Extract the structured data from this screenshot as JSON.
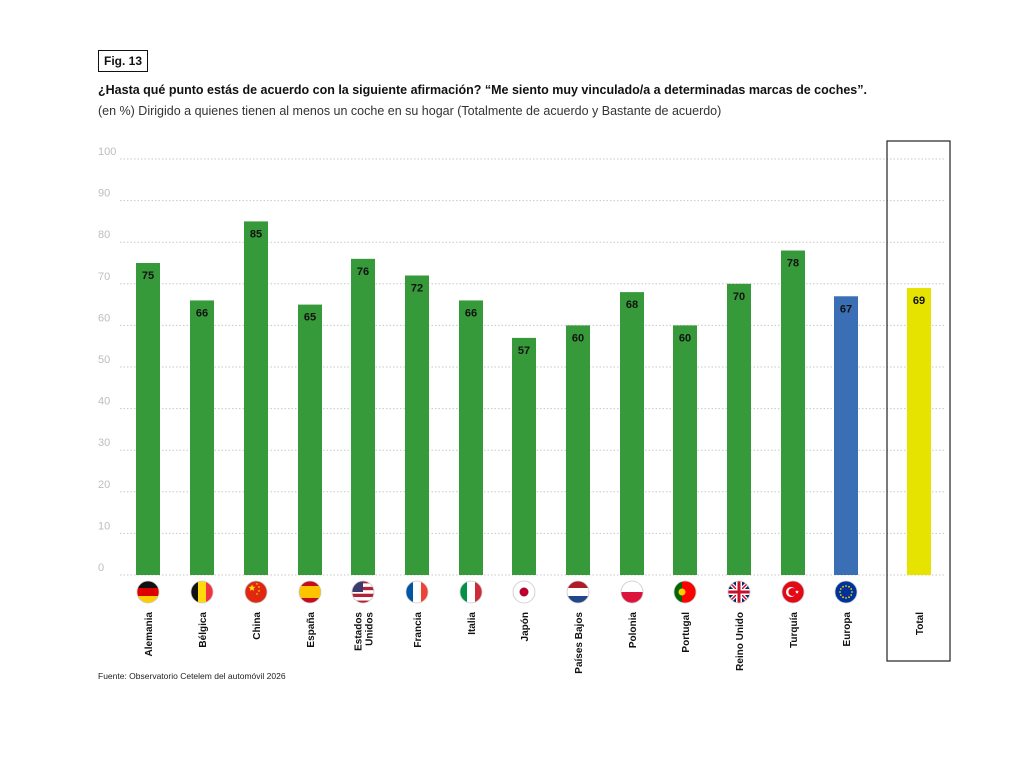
{
  "figure_tag": "Fig. 13",
  "source": "Fuente: Observatorio Cetelem del automóvil 2026",
  "colors": {
    "country": "#369a3a",
    "europa": "#3a6fb5",
    "total": "#e6e300",
    "grid": "#c8c8c8"
  },
  "chart_data": {
    "type": "bar",
    "title": "¿Hasta qué punto estás de acuerdo con la siguiente afirmación? “Me siento muy vinculado/a a determinadas marcas de coches”.",
    "subtitle": "(en %) Dirigido a quienes tienen al menos un coche en su hogar (Totalmente de acuerdo y Bastante de acuerdo)",
    "ylim": [
      0,
      100
    ],
    "yticks": [
      0,
      10,
      20,
      30,
      40,
      50,
      60,
      70,
      80,
      90,
      100
    ],
    "xlabel": "",
    "ylabel": "",
    "categories": [
      {
        "label": [
          "Alemania"
        ],
        "value": 75,
        "kind": "country",
        "flag": "germany-flag-icon"
      },
      {
        "label": [
          "Bélgica"
        ],
        "value": 66,
        "kind": "country",
        "flag": "belgium-flag-icon"
      },
      {
        "label": [
          "China"
        ],
        "value": 85,
        "kind": "country",
        "flag": "china-flag-icon"
      },
      {
        "label": [
          "España"
        ],
        "value": 65,
        "kind": "country",
        "flag": "spain-flag-icon"
      },
      {
        "label": [
          "Estados",
          "Unidos"
        ],
        "value": 76,
        "kind": "country",
        "flag": "usa-flag-icon"
      },
      {
        "label": [
          "Francia"
        ],
        "value": 72,
        "kind": "country",
        "flag": "france-flag-icon"
      },
      {
        "label": [
          "Italia"
        ],
        "value": 66,
        "kind": "country",
        "flag": "italy-flag-icon"
      },
      {
        "label": [
          "Japón"
        ],
        "value": 57,
        "kind": "country",
        "flag": "japan-flag-icon"
      },
      {
        "label": [
          "Países Bajos"
        ],
        "value": 60,
        "kind": "country",
        "flag": "netherlands-flag-icon"
      },
      {
        "label": [
          "Polonia"
        ],
        "value": 68,
        "kind": "country",
        "flag": "poland-flag-icon"
      },
      {
        "label": [
          "Portugal"
        ],
        "value": 60,
        "kind": "country",
        "flag": "portugal-flag-icon"
      },
      {
        "label": [
          "Reino Unido"
        ],
        "value": 70,
        "kind": "country",
        "flag": "uk-flag-icon"
      },
      {
        "label": [
          "Turquía"
        ],
        "value": 78,
        "kind": "country",
        "flag": "turkey-flag-icon"
      },
      {
        "label": [
          "Europa"
        ],
        "value": 67,
        "kind": "europa",
        "flag": "eu-flag-icon"
      },
      {
        "label": [
          "Total"
        ],
        "value": 69,
        "kind": "total",
        "flag": ""
      }
    ]
  }
}
